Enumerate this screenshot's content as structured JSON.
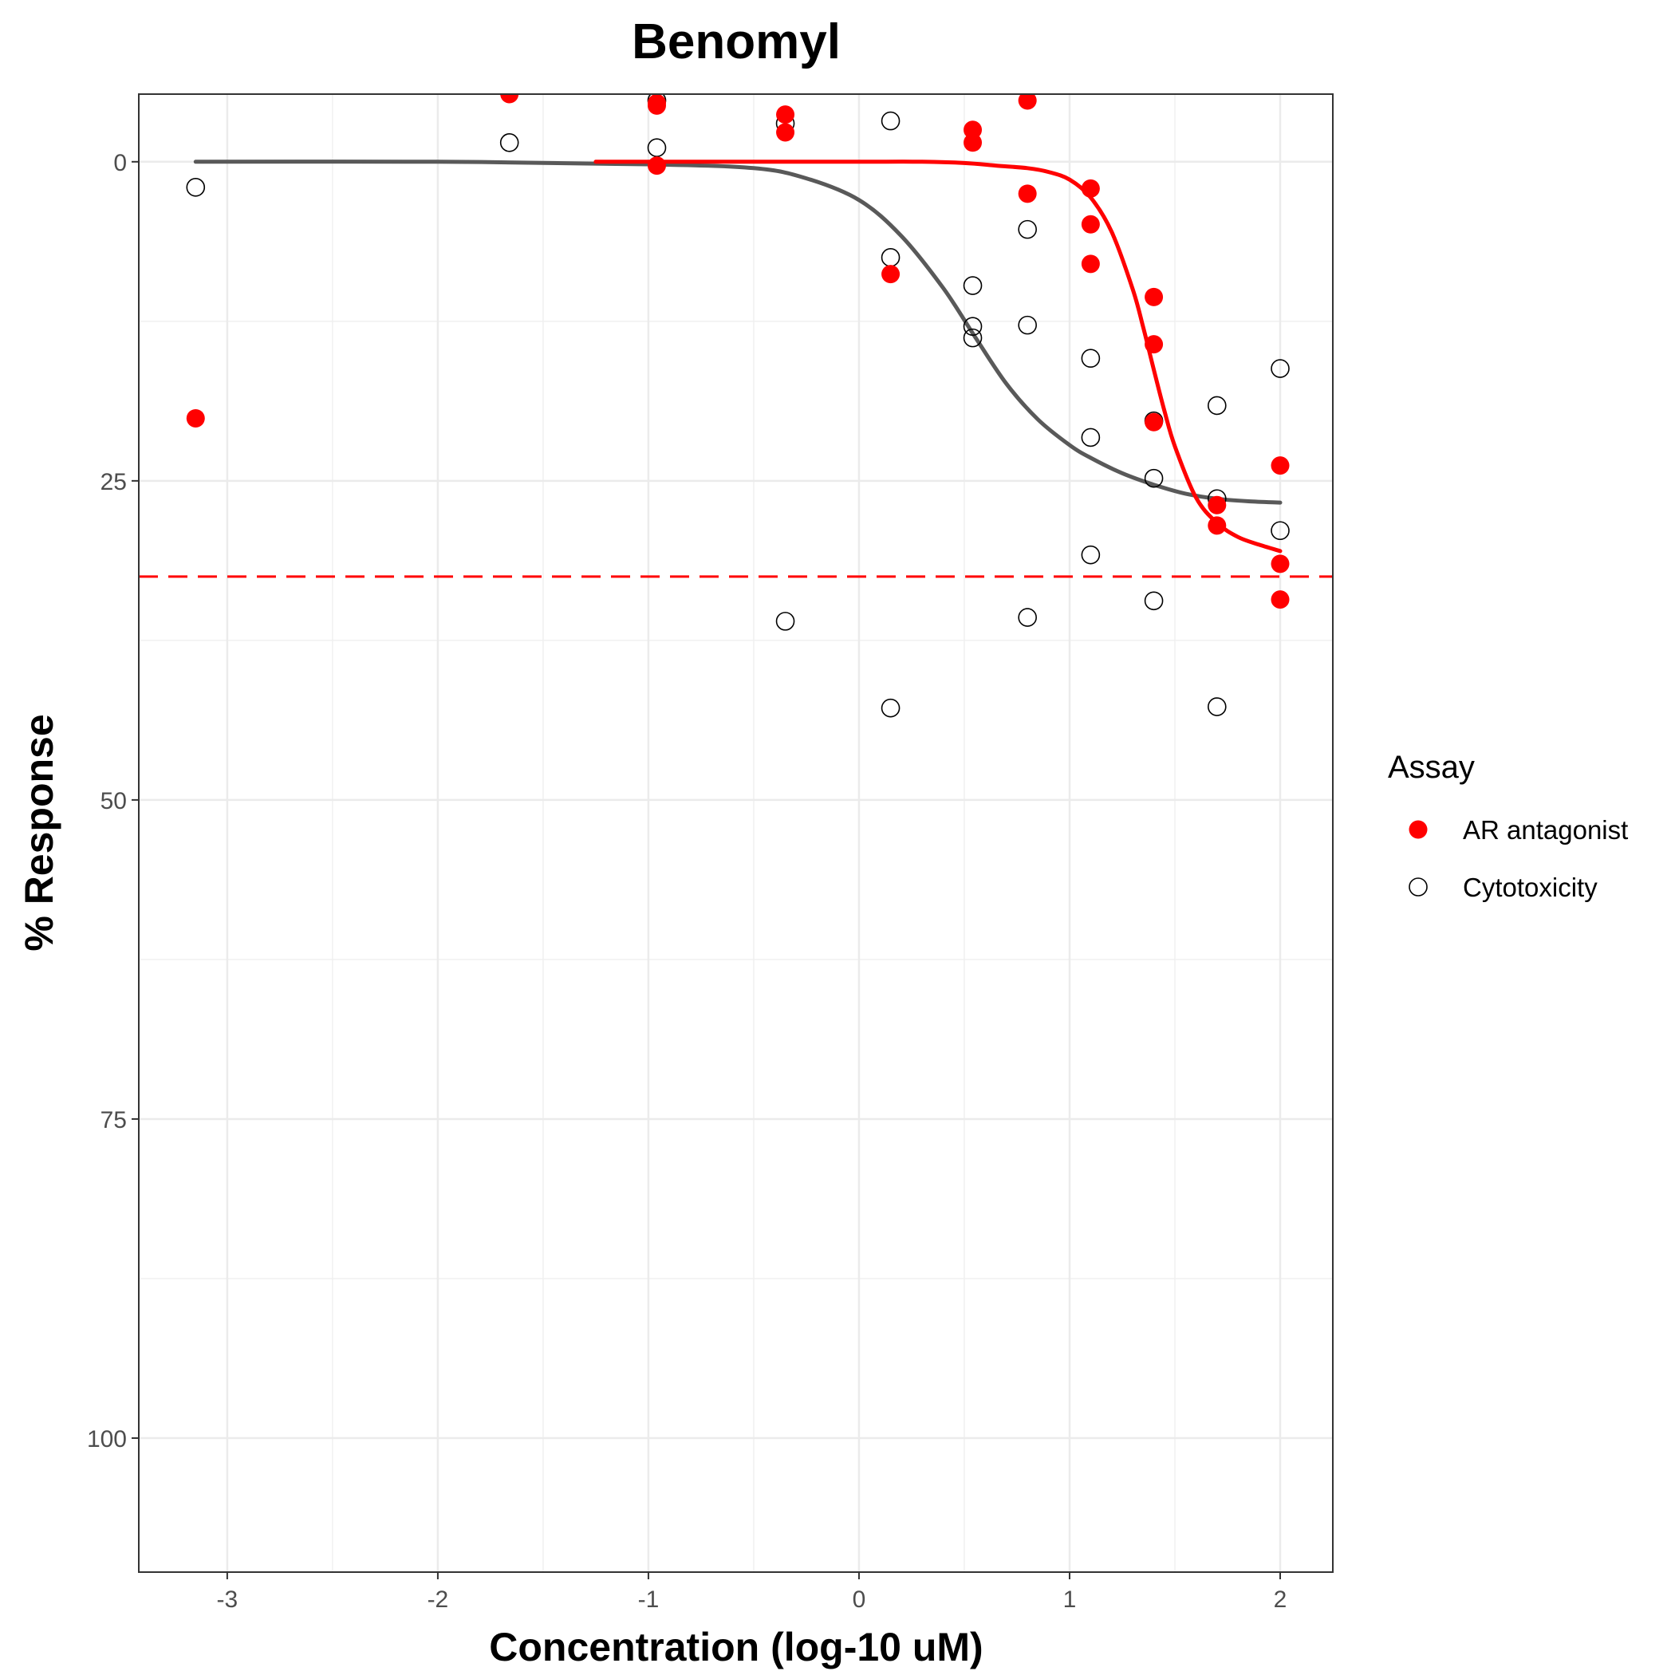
{
  "chart_data": {
    "type": "scatter",
    "title": "Benomyl",
    "xlabel": "Concentration (log-10 uM)",
    "ylabel": "% Response",
    "xlim": [
      -3.42,
      2.25
    ],
    "ylim": [
      110.5,
      -5.3
    ],
    "y_axis_reversed": true,
    "x_ticks": [
      -3,
      -2,
      -1,
      0,
      1,
      2
    ],
    "x_tick_labels": [
      "-3",
      "-2",
      "-1",
      "0",
      "1",
      "2"
    ],
    "y_ticks": [
      0,
      25,
      50,
      75,
      100
    ],
    "y_tick_labels": [
      "0",
      "25",
      "50",
      "75",
      "100"
    ],
    "grid": true,
    "reference_line": {
      "y": 32.5,
      "color": "#ff0000",
      "style": "dashed"
    },
    "legend": {
      "title": "Assay",
      "placement": "right",
      "items": [
        {
          "label": "AR antagonist",
          "marker": "filled-circle",
          "color": "#ff0000"
        },
        {
          "label": "Cytotoxicity",
          "marker": "open-circle",
          "color": "#000000"
        }
      ]
    },
    "series": [
      {
        "name": "AR antagonist",
        "color": "#ff0000",
        "marker": "filled",
        "points": [
          {
            "x": -3.15,
            "y": 20.1
          },
          {
            "x": -1.66,
            "y": -5.3
          },
          {
            "x": -0.96,
            "y": -4.6
          },
          {
            "x": -0.96,
            "y": -4.4
          },
          {
            "x": -0.96,
            "y": 0.3
          },
          {
            "x": -0.35,
            "y": -3.7
          },
          {
            "x": -0.35,
            "y": -2.3
          },
          {
            "x": 0.15,
            "y": 8.8
          },
          {
            "x": 0.54,
            "y": -2.5
          },
          {
            "x": 0.54,
            "y": -1.5
          },
          {
            "x": 0.8,
            "y": -4.8
          },
          {
            "x": 0.8,
            "y": 2.5
          },
          {
            "x": 1.1,
            "y": 2.1
          },
          {
            "x": 1.1,
            "y": 4.9
          },
          {
            "x": 1.1,
            "y": 8.0
          },
          {
            "x": 1.4,
            "y": 10.6
          },
          {
            "x": 1.4,
            "y": 14.3
          },
          {
            "x": 1.4,
            "y": 20.4
          },
          {
            "x": 1.7,
            "y": 26.9
          },
          {
            "x": 1.7,
            "y": 28.5
          },
          {
            "x": 2.0,
            "y": 23.8
          },
          {
            "x": 2.0,
            "y": 31.5
          },
          {
            "x": 2.0,
            "y": 34.3
          }
        ],
        "curve": {
          "x": [
            -1.25,
            -0.5,
            0.0,
            0.3,
            0.5,
            0.65,
            0.8,
            0.9,
            1.0,
            1.1,
            1.2,
            1.3,
            1.35,
            1.4,
            1.45,
            1.5,
            1.6,
            1.7,
            1.8,
            1.9,
            2.0
          ],
          "y": [
            0.0,
            0.0,
            0.0,
            0.0,
            0.1,
            0.3,
            0.5,
            0.8,
            1.4,
            2.8,
            5.5,
            10.0,
            13.0,
            16.3,
            19.5,
            22.3,
            26.3,
            28.3,
            29.4,
            30.0,
            30.5
          ]
        }
      },
      {
        "name": "Cytotoxicity",
        "color": "#000000",
        "marker": "open",
        "points": [
          {
            "x": -3.15,
            "y": 2.0
          },
          {
            "x": -1.66,
            "y": -1.5
          },
          {
            "x": -0.96,
            "y": -4.8
          },
          {
            "x": -0.96,
            "y": -1.1
          },
          {
            "x": -0.35,
            "y": -3.0
          },
          {
            "x": -0.35,
            "y": 36.0
          },
          {
            "x": 0.15,
            "y": -3.2
          },
          {
            "x": 0.15,
            "y": 7.5
          },
          {
            "x": 0.15,
            "y": 42.8
          },
          {
            "x": 0.54,
            "y": 9.7
          },
          {
            "x": 0.54,
            "y": 12.9
          },
          {
            "x": 0.54,
            "y": 13.8
          },
          {
            "x": 0.8,
            "y": 5.3
          },
          {
            "x": 0.8,
            "y": 12.8
          },
          {
            "x": 0.8,
            "y": 35.7
          },
          {
            "x": 1.1,
            "y": 15.4
          },
          {
            "x": 1.1,
            "y": 21.6
          },
          {
            "x": 1.1,
            "y": 30.8
          },
          {
            "x": 1.4,
            "y": 20.3
          },
          {
            "x": 1.4,
            "y": 24.8
          },
          {
            "x": 1.4,
            "y": 34.4
          },
          {
            "x": 1.7,
            "y": 19.1
          },
          {
            "x": 1.7,
            "y": 26.4
          },
          {
            "x": 1.7,
            "y": 42.7
          },
          {
            "x": 2.0,
            "y": 16.2
          },
          {
            "x": 2.0,
            "y": 28.9
          }
        ],
        "curve": {
          "x": [
            -3.15,
            -2.0,
            -1.0,
            -0.5,
            -0.25,
            0.0,
            0.2,
            0.4,
            0.55,
            0.7,
            0.85,
            1.0,
            1.1,
            1.25,
            1.4,
            1.55,
            1.7,
            1.85,
            2.0
          ],
          "y": [
            0.0,
            0.0,
            0.2,
            0.5,
            1.3,
            3.0,
            5.8,
            9.9,
            13.7,
            17.4,
            20.2,
            22.2,
            23.2,
            24.4,
            25.3,
            26.0,
            26.4,
            26.6,
            26.7
          ]
        }
      }
    ]
  }
}
